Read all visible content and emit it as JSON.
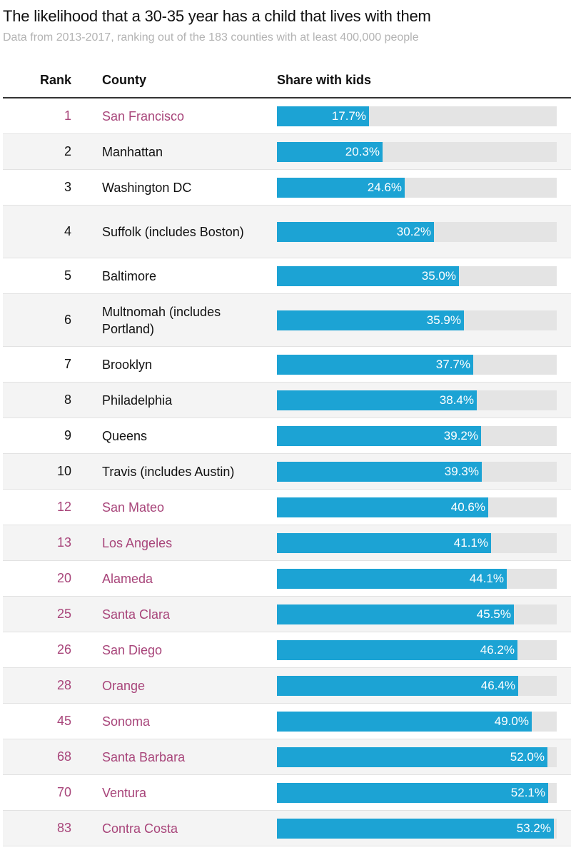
{
  "title": "The likelihood that a 30-35 year has a child that lives with them",
  "subtitle": "Data from 2013-2017, ranking out of the 183 counties with at least 400,000 people",
  "colors": {
    "bar": "#1ca3d4",
    "track": "#e4e4e4",
    "california_text": "#a8457a",
    "default_text": "#111111",
    "alt_row": "#f4f4f4"
  },
  "chart_data": {
    "type": "table",
    "columns": [
      "Rank",
      "County",
      "Share with kids"
    ],
    "value_max": 100,
    "rows": [
      {
        "rank": "1",
        "county": "San Francisco",
        "value": 17.7,
        "label": "17.7%",
        "highlight": true
      },
      {
        "rank": "2",
        "county": "Manhattan",
        "value": 20.3,
        "label": "20.3%",
        "highlight": false
      },
      {
        "rank": "3",
        "county": "Washington DC",
        "value": 24.6,
        "label": "24.6%",
        "highlight": false
      },
      {
        "rank": "4",
        "county": "Suffolk (includes Boston)",
        "value": 30.2,
        "label": "30.2%",
        "highlight": false,
        "wrap": true
      },
      {
        "rank": "5",
        "county": "Baltimore",
        "value": 35.0,
        "label": "35.0%",
        "highlight": false
      },
      {
        "rank": "6",
        "county": "Multnomah (includes Portland)",
        "value": 35.9,
        "label": "35.9%",
        "highlight": false,
        "wrap": true
      },
      {
        "rank": "7",
        "county": "Brooklyn",
        "value": 37.7,
        "label": "37.7%",
        "highlight": false
      },
      {
        "rank": "8",
        "county": "Philadelphia",
        "value": 38.4,
        "label": "38.4%",
        "highlight": false
      },
      {
        "rank": "9",
        "county": "Queens",
        "value": 39.2,
        "label": "39.2%",
        "highlight": false
      },
      {
        "rank": "10",
        "county": "Travis (includes Austin)",
        "value": 39.3,
        "label": "39.3%",
        "highlight": false
      },
      {
        "rank": "12",
        "county": "San Mateo",
        "value": 40.6,
        "label": "40.6%",
        "highlight": true
      },
      {
        "rank": "13",
        "county": "Los Angeles",
        "value": 41.1,
        "label": "41.1%",
        "highlight": true
      },
      {
        "rank": "20",
        "county": "Alameda",
        "value": 44.1,
        "label": "44.1%",
        "highlight": true
      },
      {
        "rank": "25",
        "county": "Santa Clara",
        "value": 45.5,
        "label": "45.5%",
        "highlight": true
      },
      {
        "rank": "26",
        "county": "San Diego",
        "value": 46.2,
        "label": "46.2%",
        "highlight": true
      },
      {
        "rank": "28",
        "county": "Orange",
        "value": 46.4,
        "label": "46.4%",
        "highlight": true
      },
      {
        "rank": "45",
        "county": "Sonoma",
        "value": 49.0,
        "label": "49.0%",
        "highlight": true
      },
      {
        "rank": "68",
        "county": "Santa Barbara",
        "value": 52.0,
        "label": "52.0%",
        "highlight": true
      },
      {
        "rank": "70",
        "county": "Ventura",
        "value": 52.1,
        "label": "52.1%",
        "highlight": true
      },
      {
        "rank": "83",
        "county": "Contra Costa",
        "value": 53.2,
        "label": "53.2%",
        "highlight": true
      }
    ]
  }
}
